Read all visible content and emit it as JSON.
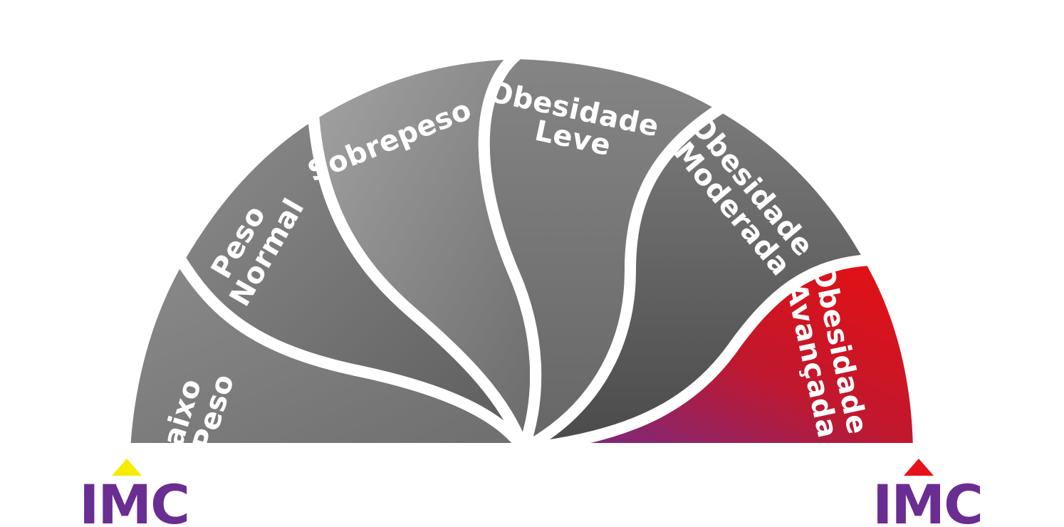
{
  "segments": [
    {
      "id": "abaixo-do-peso",
      "lines": [
        "Abaixo",
        "do Peso"
      ]
    },
    {
      "id": "peso-normal",
      "lines": [
        "Peso",
        "Normal"
      ]
    },
    {
      "id": "sobrepeso",
      "lines": [
        "Sobrepeso"
      ]
    },
    {
      "id": "obesidade-leve",
      "lines": [
        "Obesidade",
        "Leve"
      ]
    },
    {
      "id": "obesidade-moderada",
      "lines": [
        "Obesidade",
        "Moderada"
      ]
    },
    {
      "id": "obesidade-avancada",
      "lines": [
        "Obesidade",
        "Avançada"
      ]
    }
  ],
  "markers": {
    "left": {
      "label": "IMC",
      "arrow_color": "#f5ec00"
    },
    "right": {
      "label": "IMC",
      "arrow_color": "#e8121a"
    }
  },
  "colors": {
    "segment_gray": "#7a7a7a",
    "highlight_red": "#e01010",
    "highlight_purple": "#7b2a8c",
    "imc_purple": "#6a2d91"
  }
}
